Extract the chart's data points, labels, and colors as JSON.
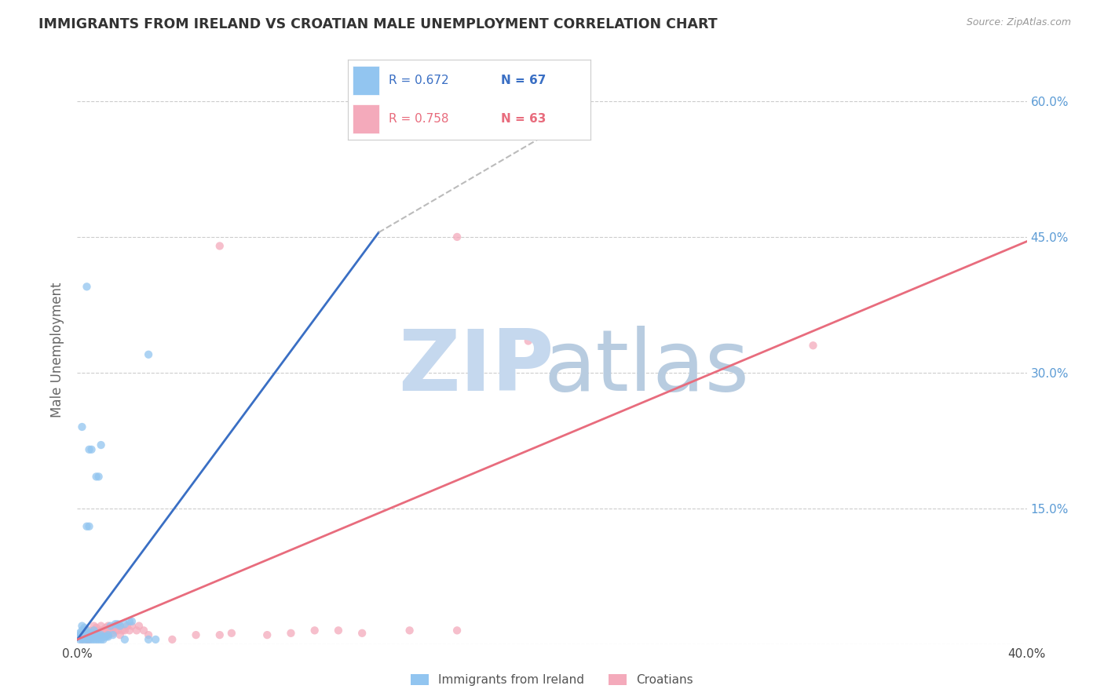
{
  "title": "IMMIGRANTS FROM IRELAND VS CROATIAN MALE UNEMPLOYMENT CORRELATION CHART",
  "source": "Source: ZipAtlas.com",
  "ylabel": "Male Unemployment",
  "xmin": 0.0,
  "xmax": 0.4,
  "ymin": 0.0,
  "ymax": 0.65,
  "yticks": [
    0.0,
    0.15,
    0.3,
    0.45,
    0.6
  ],
  "ytick_labels": [
    "",
    "15.0%",
    "30.0%",
    "45.0%",
    "60.0%"
  ],
  "xticks": [
    0.0,
    0.1,
    0.2,
    0.3,
    0.4
  ],
  "xtick_labels": [
    "0.0%",
    "",
    "",
    "",
    "40.0%"
  ],
  "legend_r1": "R = 0.672",
  "legend_n1": "N = 67",
  "legend_r2": "R = 0.758",
  "legend_n2": "N = 63",
  "legend_label1": "Immigrants from Ireland",
  "legend_label2": "Croatians",
  "blue_color": "#92C5F0",
  "pink_color": "#F4AABB",
  "blue_line_color": "#3A6FC4",
  "pink_line_color": "#E86C7D",
  "grid_color": "#CCCCCC",
  "title_color": "#333333",
  "axis_label_color": "#666666",
  "right_tick_color": "#5B9BD5",
  "watermark_zip_color": "#C5D8EE",
  "watermark_atlas_color": "#B8CCE0",
  "blue_scatter": [
    [
      0.001,
      0.005
    ],
    [
      0.001,
      0.008
    ],
    [
      0.001,
      0.01
    ],
    [
      0.001,
      0.012
    ],
    [
      0.002,
      0.005
    ],
    [
      0.002,
      0.008
    ],
    [
      0.002,
      0.01
    ],
    [
      0.002,
      0.015
    ],
    [
      0.002,
      0.02
    ],
    [
      0.003,
      0.005
    ],
    [
      0.003,
      0.008
    ],
    [
      0.003,
      0.01
    ],
    [
      0.003,
      0.012
    ],
    [
      0.003,
      0.015
    ],
    [
      0.003,
      0.018
    ],
    [
      0.004,
      0.005
    ],
    [
      0.004,
      0.008
    ],
    [
      0.004,
      0.01
    ],
    [
      0.004,
      0.012
    ],
    [
      0.004,
      0.015
    ],
    [
      0.005,
      0.005
    ],
    [
      0.005,
      0.008
    ],
    [
      0.005,
      0.01
    ],
    [
      0.005,
      0.012
    ],
    [
      0.006,
      0.005
    ],
    [
      0.006,
      0.008
    ],
    [
      0.006,
      0.01
    ],
    [
      0.006,
      0.012
    ],
    [
      0.007,
      0.005
    ],
    [
      0.007,
      0.008
    ],
    [
      0.007,
      0.01
    ],
    [
      0.007,
      0.015
    ],
    [
      0.008,
      0.005
    ],
    [
      0.008,
      0.008
    ],
    [
      0.008,
      0.01
    ],
    [
      0.008,
      0.012
    ],
    [
      0.009,
      0.005
    ],
    [
      0.009,
      0.008
    ],
    [
      0.01,
      0.005
    ],
    [
      0.01,
      0.008
    ],
    [
      0.01,
      0.01
    ],
    [
      0.011,
      0.005
    ],
    [
      0.011,
      0.008
    ],
    [
      0.012,
      0.008
    ],
    [
      0.013,
      0.008
    ],
    [
      0.013,
      0.01
    ],
    [
      0.014,
      0.02
    ],
    [
      0.015,
      0.01
    ],
    [
      0.016,
      0.022
    ],
    [
      0.017,
      0.022
    ],
    [
      0.018,
      0.02
    ],
    [
      0.02,
      0.022
    ],
    [
      0.022,
      0.025
    ],
    [
      0.023,
      0.025
    ],
    [
      0.03,
      0.005
    ],
    [
      0.033,
      0.005
    ],
    [
      0.01,
      0.22
    ],
    [
      0.03,
      0.32
    ],
    [
      0.004,
      0.13
    ],
    [
      0.005,
      0.13
    ],
    [
      0.008,
      0.185
    ],
    [
      0.009,
      0.185
    ],
    [
      0.005,
      0.215
    ],
    [
      0.006,
      0.215
    ],
    [
      0.004,
      0.395
    ],
    [
      0.002,
      0.24
    ],
    [
      0.02,
      0.005
    ]
  ],
  "pink_scatter": [
    [
      0.002,
      0.005
    ],
    [
      0.003,
      0.008
    ],
    [
      0.003,
      0.01
    ],
    [
      0.004,
      0.005
    ],
    [
      0.004,
      0.008
    ],
    [
      0.004,
      0.012
    ],
    [
      0.005,
      0.005
    ],
    [
      0.005,
      0.008
    ],
    [
      0.005,
      0.01
    ],
    [
      0.005,
      0.015
    ],
    [
      0.006,
      0.008
    ],
    [
      0.006,
      0.012
    ],
    [
      0.007,
      0.008
    ],
    [
      0.007,
      0.01
    ],
    [
      0.007,
      0.015
    ],
    [
      0.007,
      0.02
    ],
    [
      0.008,
      0.01
    ],
    [
      0.008,
      0.015
    ],
    [
      0.008,
      0.018
    ],
    [
      0.009,
      0.01
    ],
    [
      0.009,
      0.012
    ],
    [
      0.01,
      0.01
    ],
    [
      0.01,
      0.015
    ],
    [
      0.01,
      0.02
    ],
    [
      0.011,
      0.015
    ],
    [
      0.012,
      0.012
    ],
    [
      0.012,
      0.018
    ],
    [
      0.013,
      0.01
    ],
    [
      0.013,
      0.015
    ],
    [
      0.013,
      0.02
    ],
    [
      0.014,
      0.018
    ],
    [
      0.015,
      0.012
    ],
    [
      0.015,
      0.018
    ],
    [
      0.016,
      0.015
    ],
    [
      0.016,
      0.02
    ],
    [
      0.017,
      0.015
    ],
    [
      0.017,
      0.02
    ],
    [
      0.018,
      0.01
    ],
    [
      0.018,
      0.02
    ],
    [
      0.019,
      0.015
    ],
    [
      0.02,
      0.015
    ],
    [
      0.021,
      0.02
    ],
    [
      0.022,
      0.015
    ],
    [
      0.023,
      0.02
    ],
    [
      0.025,
      0.015
    ],
    [
      0.026,
      0.02
    ],
    [
      0.028,
      0.015
    ],
    [
      0.03,
      0.01
    ],
    [
      0.04,
      0.005
    ],
    [
      0.05,
      0.01
    ],
    [
      0.06,
      0.01
    ],
    [
      0.065,
      0.012
    ],
    [
      0.08,
      0.01
    ],
    [
      0.09,
      0.012
    ],
    [
      0.1,
      0.015
    ],
    [
      0.11,
      0.015
    ],
    [
      0.12,
      0.012
    ],
    [
      0.14,
      0.015
    ],
    [
      0.16,
      0.015
    ],
    [
      0.06,
      0.44
    ],
    [
      0.19,
      0.335
    ],
    [
      0.31,
      0.33
    ],
    [
      0.16,
      0.45
    ]
  ],
  "blue_line_x": [
    0.0,
    0.127
  ],
  "blue_line_y": [
    0.005,
    0.455
  ],
  "pink_line_x": [
    0.0,
    0.4
  ],
  "pink_line_y": [
    0.005,
    0.445
  ],
  "dashed_line_x": [
    0.127,
    0.215
  ],
  "dashed_line_y": [
    0.455,
    0.59
  ]
}
